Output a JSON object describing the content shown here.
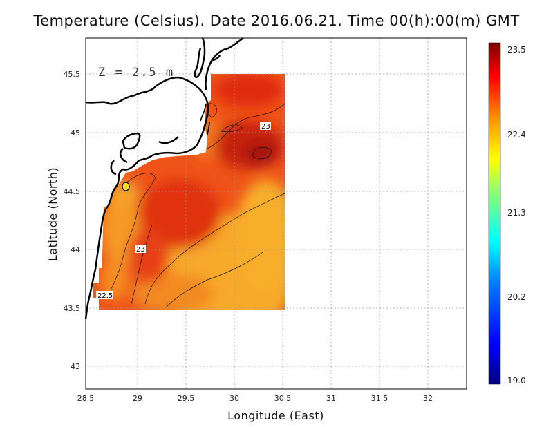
{
  "title": "Temperature (Celsius). Date 2016.06.21. Time 00(h):00(m) GMT",
  "depth_label": "Z = 2.5 m",
  "xlabel": "Longitude (East)",
  "ylabel": "Latitude (North)",
  "x_ticks": [
    "28.5",
    "29",
    "29.5",
    "30",
    "30.5",
    "31",
    "31.5",
    "32"
  ],
  "y_ticks": [
    "43",
    "43.5",
    "44",
    "44.5",
    "45",
    "45.5"
  ],
  "colorbar": {
    "labels": [
      "23.5",
      "22.4",
      "21.3",
      "20.2",
      "19.0"
    ],
    "min": 19.0,
    "max": 23.5,
    "colors": [
      "#000080",
      "#0000ff",
      "#0080ff",
      "#00ffff",
      "#80ff80",
      "#ffff00",
      "#ff8000",
      "#ff0000",
      "#800000"
    ]
  },
  "contour_labels": [
    "23",
    "23",
    "22.5"
  ],
  "colors": {
    "field_warm": "#e83010",
    "field_mid": "#f07018",
    "field_orange": "#f7a828",
    "grid": "#aaaaaa"
  }
}
